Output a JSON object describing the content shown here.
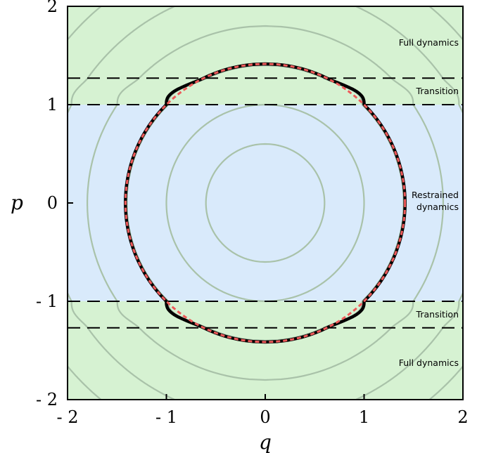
{
  "chart_data": {
    "type": "line",
    "title": "",
    "xlabel": "q",
    "ylabel": "p",
    "xlim": [
      -2,
      2
    ],
    "ylim": [
      -2,
      2
    ],
    "xticks": [
      -2,
      -1,
      0,
      1,
      2
    ],
    "yticks": [
      -2,
      -1,
      0,
      1,
      2
    ],
    "xtick_labels": [
      "- 2",
      "- 1",
      "0",
      "1",
      "2"
    ],
    "ytick_labels": [
      "- 2",
      "- 1",
      "0",
      "1",
      "2"
    ],
    "grid": false,
    "legend": "none",
    "regions": [
      {
        "label": "Full dynamics",
        "p_range": [
          1.27,
          2
        ]
      },
      {
        "label": "Transition",
        "p_range": [
          1.0,
          1.27
        ]
      },
      {
        "label": "Restrained dynamics",
        "p_range": [
          -1.0,
          1.0
        ]
      },
      {
        "label": "Transition",
        "p_range": [
          -1.27,
          -1.0
        ]
      },
      {
        "label": "Full dynamics",
        "p_range": [
          -2,
          -1.27
        ]
      }
    ],
    "dashed_lines_p": [
      1.27,
      1.0,
      -1.0,
      -1.27
    ],
    "contour_levels_E": [
      0.18,
      0.5,
      0.98,
      1.62,
      2.42,
      3.38
    ],
    "highlight_contour_E": 1.0,
    "reference_circle_radius": 1.414,
    "colors": {
      "full_region": "#d6f2d2",
      "restrained_region": "#d9eafb",
      "contour": "#a9c2a9",
      "highlight": "#000000",
      "circle": "#ef5a5a"
    }
  }
}
